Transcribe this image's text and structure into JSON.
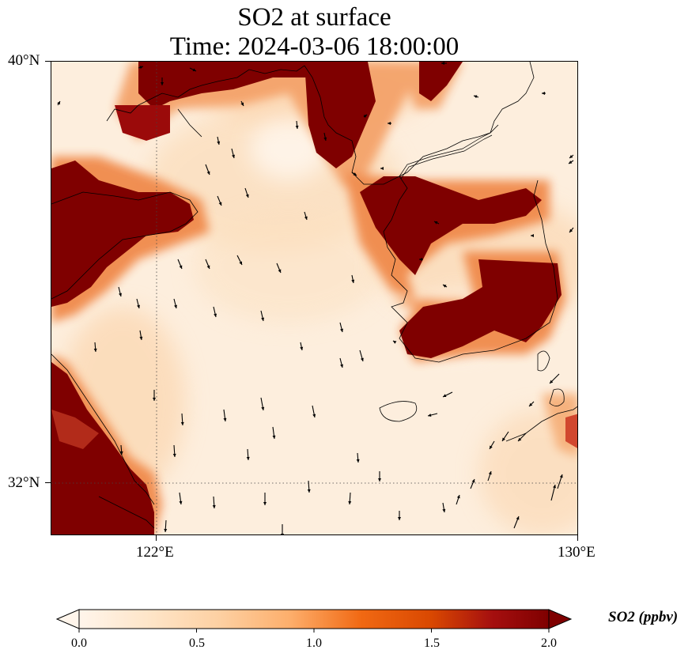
{
  "title": {
    "line1": "SO2 at surface",
    "line2": "Time: 2024-03-06 18:00:00"
  },
  "map": {
    "extent": {
      "lon_min": 120,
      "lon_max": 130,
      "lat_min": 31,
      "lat_max": 40
    },
    "lat_ticks": [
      {
        "value": 40,
        "label": "40°N"
      },
      {
        "value": 32,
        "label": "32°N"
      }
    ],
    "lon_ticks": [
      {
        "value": 122,
        "label": "122°E"
      },
      {
        "value": 130,
        "label": "130°E"
      }
    ],
    "gridlines": {
      "lat": [
        32
      ],
      "lon": [
        122
      ],
      "style": "dotted"
    },
    "field_colors": {
      "low": "#fff5eb",
      "mid": "#fdae6b",
      "high": "#7f0000"
    },
    "high_so2_regions": [
      "Liaoning coast (north)",
      "Shandong peninsula",
      "Jiangsu / Shanghai coast",
      "North Korea west coast",
      "Seoul metropolitan area",
      "South Korea southeast (Busan / Ulsan)",
      "South Korea southern coast"
    ],
    "wind_vectors": "shown as black arrows (predominantly northerly flow)"
  },
  "colorbar": {
    "label": "SO2 (ppbv)",
    "min": 0.0,
    "max": 2.0,
    "extend": "both",
    "colormap": "OrRd",
    "ticks": [
      {
        "value": 0.0,
        "label": "0.0"
      },
      {
        "value": 0.5,
        "label": "0.5"
      },
      {
        "value": 1.0,
        "label": "1.0"
      },
      {
        "value": 1.5,
        "label": "1.5"
      },
      {
        "value": 2.0,
        "label": "2.0"
      }
    ]
  }
}
